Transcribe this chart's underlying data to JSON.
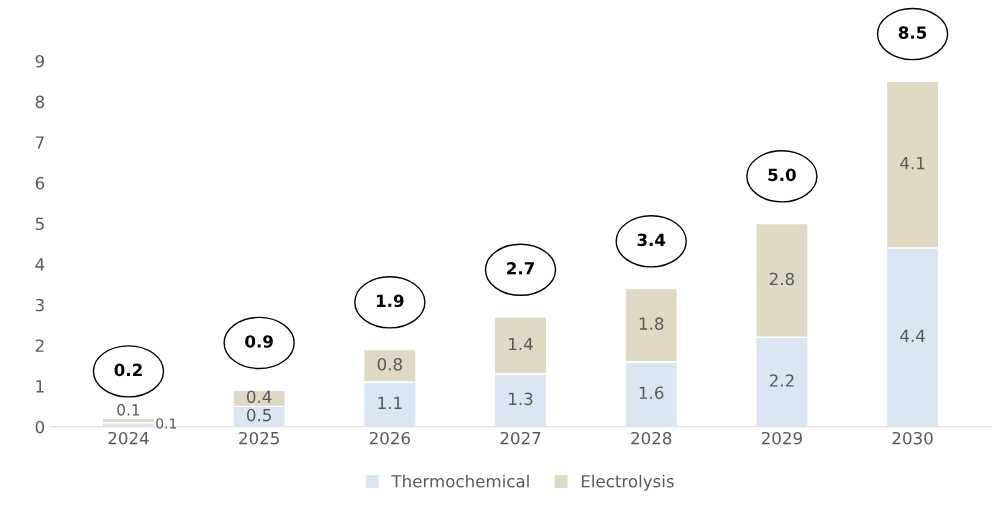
{
  "chart_data": {
    "type": "bar",
    "stacked": true,
    "categories": [
      "2024",
      "2025",
      "2026",
      "2027",
      "2028",
      "2029",
      "2030"
    ],
    "series": [
      {
        "name": "Thermochemical",
        "color": "#dce6f2",
        "values": [
          0.1,
          0.5,
          1.1,
          1.3,
          1.6,
          2.2,
          4.4
        ]
      },
      {
        "name": "Electrolysis",
        "color": "#ddd9c4",
        "values": [
          0.1,
          0.4,
          0.8,
          1.4,
          1.8,
          2.8,
          4.1
        ]
      }
    ],
    "totals": [
      "0.2",
      "0.9",
      "1.9",
      "2.7",
      "3.4",
      "5.0",
      "8.5"
    ],
    "data_labels": true,
    "ylim": [
      0,
      9
    ],
    "yticks": [
      0,
      1,
      2,
      3,
      4,
      5,
      6,
      7,
      8,
      9
    ],
    "grid": false,
    "legend": "bottom"
  }
}
